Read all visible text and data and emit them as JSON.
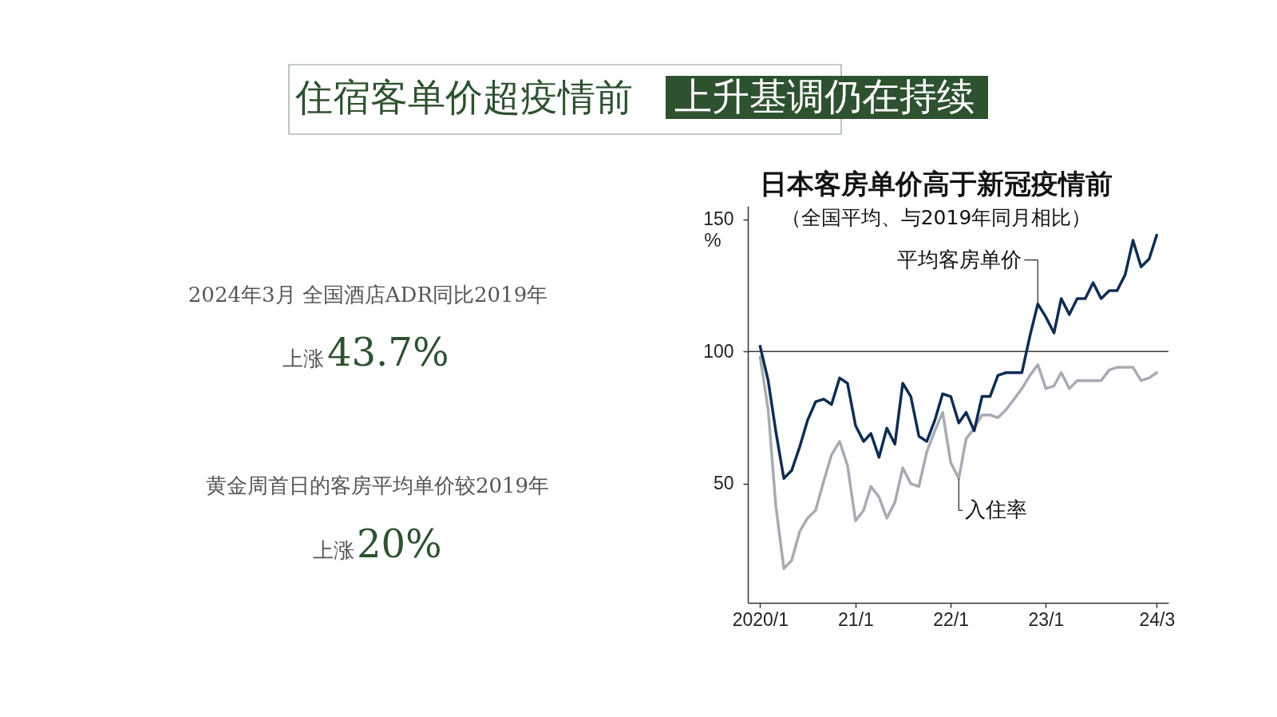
{
  "chart_data": {
    "type": "line",
    "title": "日本客房单价高于新冠疫情前",
    "subtitle": "（全国平均、与2019年同月相比）",
    "ylabel": "%",
    "annotations": [
      "住宿客单价超疫情前",
      "上升基调仍在持续",
      "2024年3月 全国酒店ADR同比2019年",
      "上涨",
      "43.7%",
      "黄金周首日的客房平均单价较2019年",
      "上涨",
      "20%"
    ],
    "x": [
      "2020-01",
      "2020-02",
      "2020-03",
      "2020-04",
      "2020-05",
      "2020-06",
      "2020-07",
      "2020-08",
      "2020-09",
      "2020-10",
      "2020-11",
      "2020-12",
      "2021-01",
      "2021-02",
      "2021-03",
      "2021-04",
      "2021-05",
      "2021-06",
      "2021-07",
      "2021-08",
      "2021-09",
      "2021-10",
      "2021-11",
      "2021-12",
      "2022-01",
      "2022-02",
      "2022-03",
      "2022-04",
      "2022-05",
      "2022-06",
      "2022-07",
      "2022-08",
      "2022-09",
      "2022-10",
      "2022-11",
      "2022-12",
      "2023-01",
      "2023-02",
      "2023-03",
      "2023-04",
      "2023-05",
      "2023-06",
      "2023-07",
      "2023-08",
      "2023-09",
      "2023-10",
      "2023-11",
      "2023-12",
      "2024-01",
      "2024-02",
      "2024-03"
    ],
    "xlim": [
      "2019-11-15",
      "2024-04-15"
    ],
    "xticks": [
      {
        "value": "2020-01",
        "label": "2020/1"
      },
      {
        "value": "2021-01",
        "label": "21/1"
      },
      {
        "value": "2022-01",
        "label": "22/1"
      },
      {
        "value": "2023-01",
        "label": "23/1"
      },
      {
        "value": "2024-03",
        "label": "24/3"
      }
    ],
    "ylim": [
      5,
      155
    ],
    "yticks": [
      50,
      100,
      150
    ],
    "series": [
      {
        "name": "平均客房单价",
        "color": "#0f2d52",
        "values": [
          102,
          89,
          70,
          52,
          55,
          64,
          74,
          81,
          82,
          80,
          90,
          88,
          72,
          66,
          69,
          60,
          71,
          65,
          88,
          83,
          68,
          66,
          74,
          84,
          83,
          73,
          77,
          70,
          83,
          83,
          91,
          92,
          92,
          92,
          106,
          118,
          113,
          107,
          120,
          114,
          120,
          120,
          126,
          120,
          123,
          123,
          129,
          142,
          132,
          135,
          144
        ]
      },
      {
        "name": "入住率",
        "color": "#a9abb3",
        "values": [
          98,
          78,
          42,
          18,
          21,
          32,
          37,
          40,
          51,
          61,
          66,
          57,
          36,
          40,
          49,
          45,
          37,
          43,
          56,
          50,
          49,
          62,
          70,
          77,
          58,
          52,
          67,
          71,
          76,
          76,
          75,
          78,
          82,
          86,
          91,
          95,
          86,
          87,
          92,
          86,
          89,
          89,
          89,
          89,
          93,
          94,
          94,
          94,
          89,
          90,
          92
        ]
      }
    ],
    "ref_lines": [
      {
        "axis": "y",
        "value": 100,
        "color": "#3a3a3a"
      }
    ]
  }
}
